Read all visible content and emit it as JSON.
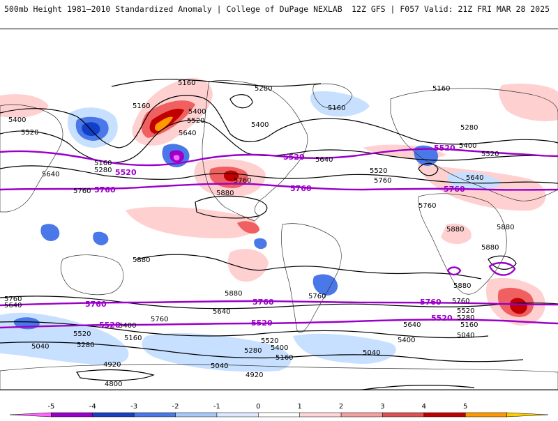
{
  "header": {
    "left": "500mb Height 1981–2010 Standardized Anomaly | College of DuPage NEXLAB",
    "right": "12Z GFS | F057 Valid: 21Z FRI MAR 28 2025"
  },
  "contour_labels": [
    "5160",
    "5280",
    "5400",
    "5520",
    "5640",
    "5760",
    "5880",
    "4920",
    "5040",
    "4800"
  ],
  "purple_labels": [
    "5520",
    "5760"
  ],
  "colors": {
    "purple_contour": "#9a00c8",
    "red_dark": "#c00000",
    "red": "#f06060",
    "red_light": "#ffd0d0",
    "orange": "#ff9900",
    "blue_light": "#c8e0ff",
    "blue": "#4a78e8",
    "blue_dark": "#1040c8",
    "magenta": "#ff66ff"
  },
  "scale": {
    "ticks": [
      "-5",
      "-4",
      "-3",
      "-2",
      "-1",
      "0",
      "1",
      "2",
      "3",
      "4",
      "5"
    ],
    "colors": [
      "#ff66ff",
      "#9900cc",
      "#1a3fbf",
      "#4a78e8",
      "#a8c8f8",
      "#dce9ff",
      "#ffffff",
      "#ffd6d6",
      "#f4a0a0",
      "#e05050",
      "#c00000",
      "#ff9900",
      "#ffcc00"
    ]
  }
}
